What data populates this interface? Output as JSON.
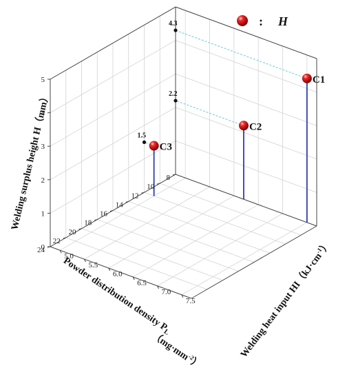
{
  "chart_data": {
    "type": "scatter3d",
    "title": "",
    "xlabel": "Powder distribution density P",
    "xlabel_sub": "L",
    "xlabel_unit": "（mg·mm",
    "xlabel_unit_sup": "-2",
    "xlabel_unit_close": "）",
    "ylabel": "Welding heat input HI（kJ·cm",
    "ylabel_sup": "-1",
    "ylabel_close": "）",
    "zlabel": "Welding surplus height H（mm）",
    "xticks": [
      "8",
      "10",
      "12",
      "14",
      "16",
      "18",
      "20",
      "22",
      "24"
    ],
    "yticks": [
      "5.0",
      "5.5",
      "6.0",
      "6.5",
      "7.0",
      "7.5"
    ],
    "zticks": [
      "0",
      "1",
      "2",
      "3",
      "4",
      "5"
    ],
    "xlim": [
      8,
      24
    ],
    "ylim": [
      4.8,
      7.7
    ],
    "zlim": [
      0,
      5
    ],
    "legend": {
      "marker_color": "#e01818",
      "sep": ":",
      "label": "H",
      "placement": "top-right"
    },
    "points": [
      {
        "name": "C1",
        "value_label": "4.3",
        "x": 8,
        "y": 7.5,
        "z": 4.3
      },
      {
        "name": "C2",
        "value_label": "2.2",
        "x": 8,
        "y": 6.2,
        "z": 2.2
      },
      {
        "name": "C3",
        "value_label": "1.5",
        "x": 12,
        "y": 5.0,
        "z": 1.5
      }
    ],
    "colors": {
      "stem": "#2b3bb0",
      "projection": "#7fd6dc",
      "ball": "#e01818",
      "grid": "#d3d3d3"
    }
  }
}
